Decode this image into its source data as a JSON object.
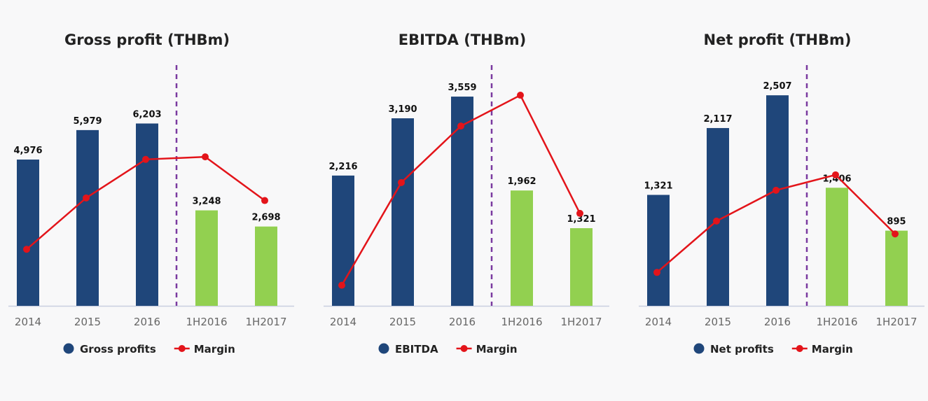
{
  "colors": {
    "historical": "#1f467a",
    "interim": "#92d050",
    "margin": "#e3141a",
    "divider": "#7a3aa0",
    "axis": "#c9cfe0"
  },
  "chart_data": [
    {
      "type": "bar",
      "title": "Gross profit (THBm)",
      "categories": [
        "2014",
        "2015",
        "2016",
        "1H2016",
        "1H2017"
      ],
      "series": [
        {
          "name": "Gross profits",
          "values": [
            4976,
            5979,
            6203,
            3248,
            2698
          ],
          "labels": [
            "4,976",
            "5,979",
            "6,203",
            "3,248",
            "2,698"
          ]
        },
        {
          "name": "Margin",
          "type": "line",
          "values": [
            22,
            42,
            57,
            58,
            41
          ]
        }
      ],
      "ylim": [
        0,
        10000
      ],
      "divider_between": [
        "2016",
        "1H2016"
      ],
      "legend": [
        "Gross profits",
        "Margin"
      ]
    },
    {
      "type": "bar",
      "title": "EBITDA (THBm)",
      "categories": [
        "2014",
        "2015",
        "2016",
        "1H2016",
        "1H2017"
      ],
      "series": [
        {
          "name": "EBITDA",
          "values": [
            2216,
            3190,
            3559,
            1962,
            1321
          ],
          "labels": [
            "2,216",
            "3,190",
            "3,559",
            "1,962",
            "1,321"
          ]
        },
        {
          "name": "Margin",
          "type": "line",
          "values": [
            8,
            48,
            70,
            82,
            36
          ]
        }
      ],
      "ylim": [
        0,
        5000
      ],
      "divider_between": [
        "2016",
        "1H2016"
      ],
      "legend": [
        "EBITDA",
        "Margin"
      ]
    },
    {
      "type": "bar",
      "title": "Net profit (THBm)",
      "categories": [
        "2014",
        "2015",
        "2016",
        "1H2016",
        "1H2017"
      ],
      "series": [
        {
          "name": "Net profits",
          "values": [
            1321,
            2117,
            2507,
            1406,
            895
          ],
          "labels": [
            "1,321",
            "2,117",
            "2,507",
            "1,406",
            "895"
          ]
        },
        {
          "name": "Margin",
          "type": "line",
          "values": [
            13,
            33,
            45,
            51,
            28
          ]
        }
      ],
      "ylim": [
        0,
        3500
      ],
      "divider_between": [
        "2016",
        "1H2016"
      ],
      "legend": [
        "Net profits",
        "Margin"
      ]
    }
  ]
}
